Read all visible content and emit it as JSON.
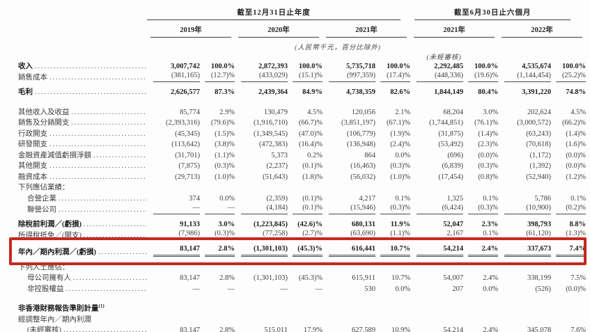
{
  "table": {
    "header": {
      "group_annual": "截至12月31日止年度",
      "group_interim": "截至6月30日止六個月",
      "year_columns": [
        "2019年",
        "2020年",
        "2021年",
        "2021年",
        "2022年"
      ],
      "unit_note": "(人民幣千元，百分比除外)",
      "unaudited_note": "(未經審核)"
    },
    "highlight_box_color": "#c5281f",
    "rows": [
      {
        "label": "收入",
        "bold": true,
        "leaders": true,
        "values": [
          "3,007,742",
          "100.0%",
          "2,872,393",
          "100.0%",
          "5,735,718",
          "100.0%",
          "2,292,485",
          "100.0%",
          "4,535,674",
          "100.0%"
        ]
      },
      {
        "label": "銷售成本",
        "leaders": true,
        "rule": "below",
        "values": [
          "(381,165)",
          "(12.7)%",
          "(433,029)",
          "(15.1)%",
          "(997,359)",
          "(17.4)%",
          "(448,336)",
          "(19.6)%",
          "(1,144,454)",
          "(25.2)%"
        ]
      },
      {
        "label": "毛利",
        "bold": true,
        "leaders": true,
        "space": "sm",
        "values": [
          "2,626,577",
          "87.3%",
          "2,439,364",
          "84.9%",
          "4,738,359",
          "82.6%",
          "1,844,149",
          "80.4%",
          "3,391,220",
          "74.8%"
        ]
      },
      {
        "label": "其他收入及收益",
        "leaders": true,
        "space": "lg",
        "values": [
          "85,774",
          "2.9%",
          "130,479",
          "4.5%",
          "120,056",
          "2.1%",
          "68,204",
          "3.0%",
          "202,624",
          "4.5%"
        ]
      },
      {
        "label": "銷售及分銷開支",
        "leaders": true,
        "values": [
          "(2,393,316)",
          "(79.6)%",
          "(1,916,710)",
          "(66.7)%",
          "(3,851,197)",
          "(67.1)%",
          "(1,744,851)",
          "(76.1)%",
          "(3,000,572)",
          "(66.2)%"
        ]
      },
      {
        "label": "行政開支",
        "leaders": true,
        "values": [
          "(45,345)",
          "(1.5)%",
          "(1,349,545)",
          "(47.0)%",
          "(106,779)",
          "(1.9)%",
          "(31,875)",
          "(1.4)%",
          "(63,243)",
          "(1.4)%"
        ]
      },
      {
        "label": "研發開支",
        "leaders": true,
        "values": [
          "(113,642)",
          "(3.8)%",
          "(472,383)",
          "(16.4)%",
          "(136,948)",
          "(2.4)%",
          "(53,492)",
          "(2.3)%",
          "(70,618)",
          "(1.6)%"
        ]
      },
      {
        "label": "金融資產減值虧損淨額",
        "leaders": true,
        "values": [
          "(31,701)",
          "(1.1)%",
          "5,373",
          "0.2%",
          "864",
          "0.0%",
          "(696)",
          "(0.0)%",
          "(1,172)",
          "(0.0)%"
        ]
      },
      {
        "label": "其他開支",
        "leaders": true,
        "values": [
          "(7,875)",
          "(0.3)%",
          "(2,237)",
          "(0.1)%",
          "(16,463)",
          "(0.3)%",
          "(6,839)",
          "(0.3)%",
          "(1,392)",
          "(0.0)%"
        ]
      },
      {
        "label": "融資成本",
        "leaders": true,
        "values": [
          "(29,713)",
          "(1.0)%",
          "(51,643)",
          "(1.8)%",
          "(56,032)",
          "(1.0)%",
          "(17,454)",
          "(0.8)%",
          "(52,940)",
          "(1.2)%"
        ]
      },
      {
        "label": "下列應佔業績：",
        "values": []
      },
      {
        "label": "合營企業",
        "indent": 1,
        "leaders": true,
        "values": [
          "374",
          "0.0%",
          "(2,359)",
          "(0.1)%",
          "4,217",
          "0.1%",
          "1,325",
          "0.1%",
          "5,786",
          "0.1%"
        ]
      },
      {
        "label": "聯營公司",
        "indent": 1,
        "leaders": true,
        "rule": "below",
        "values": [
          "—",
          "—",
          "(4,184)",
          "(0.1)%",
          "(15,946)",
          "(0.3)%",
          "(6,424)",
          "(0.3)%",
          "(10,900)",
          "(0.2)%"
        ]
      },
      {
        "label": "除稅前利潤／(虧損)",
        "bold": true,
        "leaders": true,
        "space": "sm",
        "values": [
          "91,133",
          "3.0%",
          "(1,223,845)",
          "(42.6)%",
          "680,131",
          "11.9%",
          "52,047",
          "2.3%",
          "398,793",
          "8.8%"
        ]
      },
      {
        "label": "所得稅抵免／(開支)",
        "leaders": true,
        "rule": "below",
        "values": [
          "(7,986)",
          "(0.3)%",
          "(77,258)",
          "(2.7)%",
          "(63,690)",
          "(1.1)%",
          "2,167",
          "0.1%",
          "(61,120)",
          "(1.3)%"
        ]
      },
      {
        "label": "年內／期內利潤／(虧損)",
        "bold": true,
        "leaders": true,
        "rule": "double",
        "space": "sm",
        "highlight": true,
        "values": [
          "83,147",
          "2.8%",
          "(1,301,103)",
          "(45.3)%",
          "616,441",
          "10.7%",
          "54,214",
          "2.4%",
          "337,673",
          "7.4%"
        ]
      },
      {
        "label": "下列人士應佔：",
        "space": "sm",
        "values": []
      },
      {
        "label": "母公司擁有人",
        "indent": 1,
        "leaders": true,
        "values": [
          "83,147",
          "2.8%",
          "(1,301,103)",
          "(45.3)%",
          "615,911",
          "10.7%",
          "54,007",
          "2.4%",
          "338,199",
          "7.5%"
        ]
      },
      {
        "label": "非控股權益",
        "indent": 1,
        "leaders": true,
        "values": [
          "—",
          "—",
          "—",
          "—",
          "530",
          "0.0%",
          "207",
          "0.0%",
          "(526)",
          "(0.0)%"
        ]
      },
      {
        "label": "非香港財務報告準則計量",
        "sup": "(1)",
        "bold": true,
        "space": "lg",
        "values": []
      },
      {
        "label": "經調整年內／期內利潤",
        "values": []
      },
      {
        "label": "(未經審核)",
        "indent": 1,
        "leaders": true,
        "values": [
          "83,147",
          "2.8%",
          "515,011",
          "17.9%",
          "627,589",
          "10.9%",
          "54,214",
          "2.4%",
          "345,078",
          "7.6%"
        ]
      }
    ]
  }
}
